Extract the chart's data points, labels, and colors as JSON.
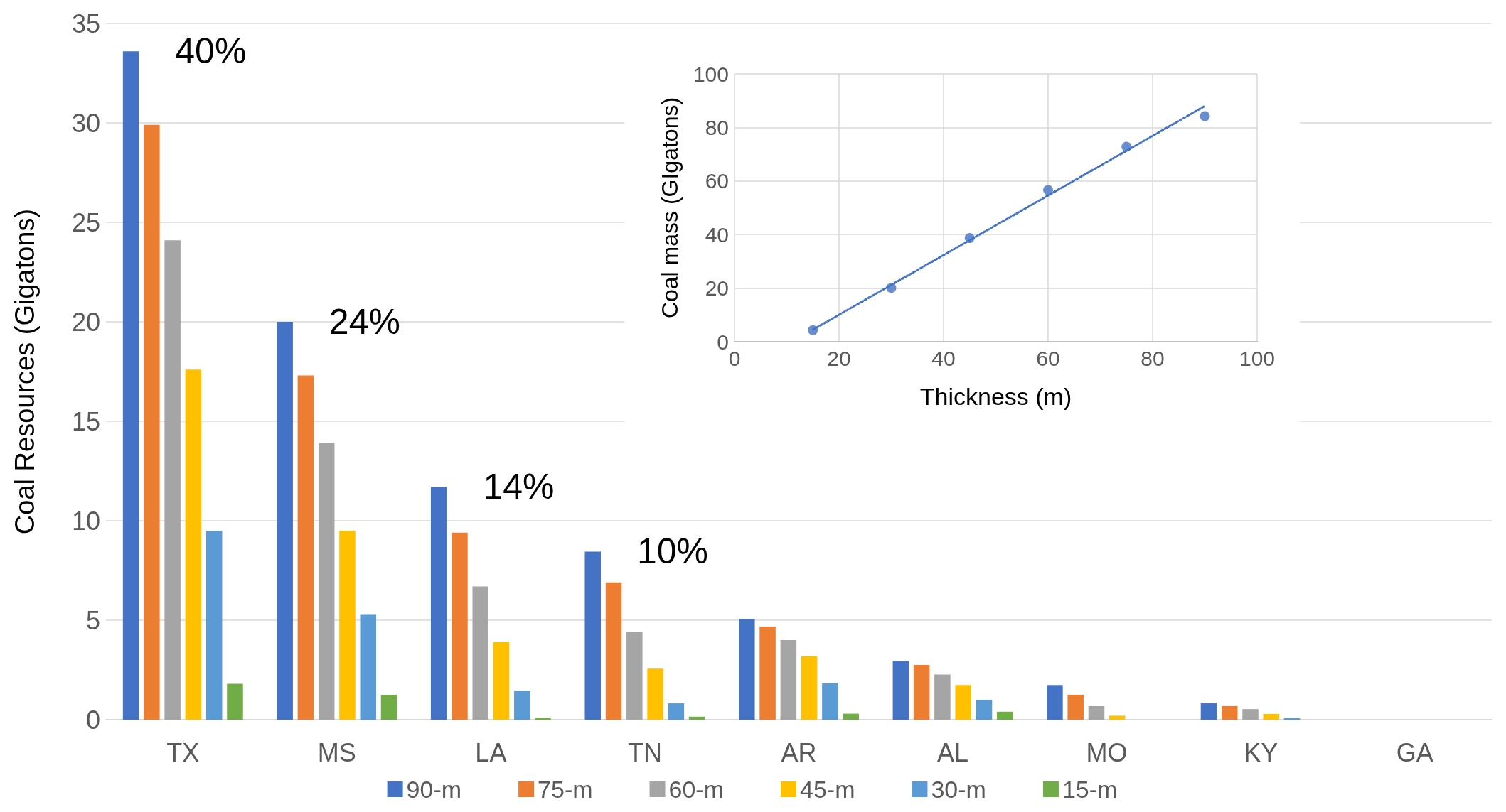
{
  "chart_data": [
    {
      "type": "bar",
      "ylabel": "Coal Resources (Gigatons)",
      "categories": [
        "TX",
        "MS",
        "LA",
        "TN",
        "AR",
        "AL",
        "MO",
        "KY",
        "GA"
      ],
      "series": [
        {
          "name": "90-m",
          "color": "#4472c4",
          "values": [
            33.6,
            20.0,
            11.7,
            8.45,
            5.07,
            2.95,
            1.74,
            0.82,
            0
          ]
        },
        {
          "name": "75-m",
          "color": "#ed7d31",
          "values": [
            29.9,
            17.3,
            9.4,
            6.9,
            4.68,
            2.75,
            1.25,
            0.68,
            0
          ]
        },
        {
          "name": "60-m",
          "color": "#a5a5a5",
          "values": [
            24.1,
            13.9,
            6.7,
            4.4,
            4.0,
            2.27,
            0.68,
            0.53,
            0
          ]
        },
        {
          "name": "45-m",
          "color": "#ffc000",
          "values": [
            17.6,
            9.5,
            3.9,
            2.56,
            3.19,
            1.74,
            0.2,
            0.29,
            0
          ]
        },
        {
          "name": "30-m",
          "color": "#5b9bd5",
          "values": [
            9.5,
            5.3,
            1.45,
            0.82,
            1.83,
            1.0,
            0,
            0.08,
            0
          ]
        },
        {
          "name": "15-m",
          "color": "#70ad47",
          "values": [
            1.8,
            1.25,
            0.1,
            0.15,
            0.3,
            0.4,
            0,
            0,
            0
          ]
        }
      ],
      "ylim": [
        0,
        35
      ],
      "yticks": [
        0,
        5,
        10,
        15,
        20,
        25,
        30,
        35
      ],
      "grid": "y",
      "legend": "bottom",
      "annotations": [
        "40%",
        "24%",
        "14%",
        "10%"
      ]
    },
    {
      "type": "scatter",
      "xlabel": "Thickness (m)",
      "ylabel": "Coal mass (GIgatons)",
      "xlim": [
        0,
        100
      ],
      "xticks": [
        0,
        20,
        40,
        60,
        80,
        100
      ],
      "ylim": [
        0,
        100
      ],
      "yticks": [
        0,
        20,
        40,
        60,
        80,
        100
      ],
      "grid": true,
      "marker": "circle",
      "series": [
        {
          "type": "scatter",
          "color": "#4472c4",
          "x": [
            15,
            30,
            45,
            60,
            75,
            90
          ],
          "values": [
            4.3,
            20.1,
            38.7,
            56.6,
            72.8,
            84.2
          ]
        },
        {
          "type": "line",
          "color": "#4472c4",
          "x": [
            15,
            90
          ],
          "values": [
            4.5,
            88
          ],
          "line_style": "dotted",
          "marker": "none"
        }
      ]
    }
  ]
}
